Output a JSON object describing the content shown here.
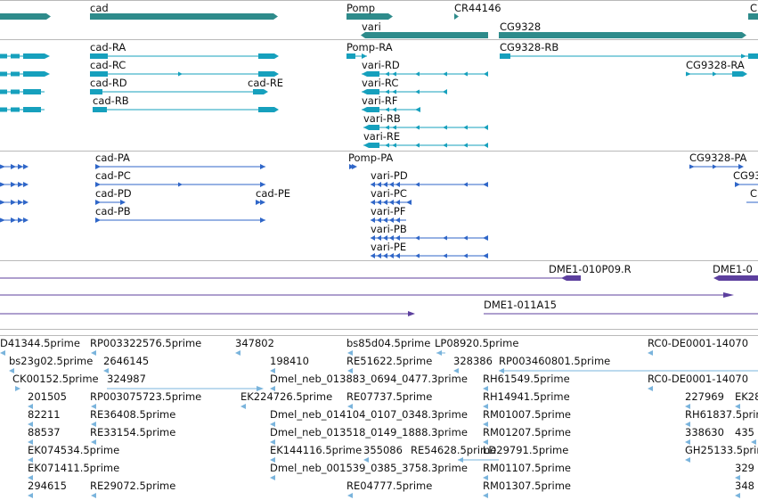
{
  "tracks": {
    "gene_spans": {
      "colors": {
        "feature": "#2e8b8b"
      },
      "labels": [
        {
          "text": "cad"
        },
        {
          "text": "Pomp"
        },
        {
          "text": "CR44146"
        },
        {
          "text": "vari"
        },
        {
          "text": "CG9328"
        },
        {
          "text": "C"
        }
      ]
    },
    "transcripts": {
      "colors": {
        "feature": "#16a0bd"
      },
      "labels": [
        {
          "text": "cad-RA"
        },
        {
          "text": "cad-RC"
        },
        {
          "text": "cad-RD"
        },
        {
          "text": "cad-RE"
        },
        {
          "text": "cad-RB"
        },
        {
          "text": "Pomp-RA"
        },
        {
          "text": "vari-RD"
        },
        {
          "text": "vari-RC"
        },
        {
          "text": "vari-RF"
        },
        {
          "text": "vari-RB"
        },
        {
          "text": "vari-RE"
        },
        {
          "text": "CG9328-RB"
        },
        {
          "text": "CG9328-RA"
        }
      ]
    },
    "proteins": {
      "colors": {
        "feature": "#2f66c8"
      },
      "labels": [
        {
          "text": "cad-PA"
        },
        {
          "text": "cad-PC"
        },
        {
          "text": "cad-PD"
        },
        {
          "text": "cad-PE"
        },
        {
          "text": "cad-PB"
        },
        {
          "text": "Pomp-PA"
        },
        {
          "text": "vari-PD"
        },
        {
          "text": "vari-PC"
        },
        {
          "text": "vari-PF"
        },
        {
          "text": "vari-PB"
        },
        {
          "text": "vari-PE"
        },
        {
          "text": "CG9328-PA"
        },
        {
          "text": "CG93"
        },
        {
          "text": "C"
        }
      ]
    },
    "clones": {
      "colors": {
        "feature": "#5c3f9e"
      },
      "labels": [
        {
          "text": "DME1-010P09.R"
        },
        {
          "text": "DME1-0"
        },
        {
          "text": "DME1-011A15"
        }
      ]
    },
    "ests": {
      "colors": {
        "feature": "#7ab4dc"
      },
      "labels": [
        {
          "text": "D41344.5prime"
        },
        {
          "text": "RP003322576.5prime"
        },
        {
          "text": "347802"
        },
        {
          "text": "bs85d04.5prime"
        },
        {
          "text": "LP08920.5prime"
        },
        {
          "text": "RC0-DE0001-14070"
        },
        {
          "text": "bs23g02.5prime"
        },
        {
          "text": "2646145"
        },
        {
          "text": "198410"
        },
        {
          "text": "RE51622.5prime"
        },
        {
          "text": "328386"
        },
        {
          "text": "RP003460801.5prime"
        },
        {
          "text": "CK00152.5prime"
        },
        {
          "text": "324987"
        },
        {
          "text": "Dmel_neb_013883_0694_0477.3prime"
        },
        {
          "text": "RH61549.5prime"
        },
        {
          "text": "RC0-DE0001-14070"
        },
        {
          "text": "201505"
        },
        {
          "text": "RP003075723.5prime"
        },
        {
          "text": "EK224726.5prime"
        },
        {
          "text": "RE07737.5prime"
        },
        {
          "text": "RH14941.5prime"
        },
        {
          "text": "227969"
        },
        {
          "text": "EK28"
        },
        {
          "text": "82211"
        },
        {
          "text": "RE36408.5prime"
        },
        {
          "text": "Dmel_neb_014104_0107_0348.3prime"
        },
        {
          "text": "RM01007.5prime"
        },
        {
          "text": "RH61837.5prime"
        },
        {
          "text": "88537"
        },
        {
          "text": "RE33154.5prime"
        },
        {
          "text": "Dmel_neb_013518_0149_1888.3prime"
        },
        {
          "text": "RM01207.5prime"
        },
        {
          "text": "338630"
        },
        {
          "text": "435"
        },
        {
          "text": "EK074534.5prime"
        },
        {
          "text": "EK144116.5prime"
        },
        {
          "text": "355086"
        },
        {
          "text": "RE54628.5prime"
        },
        {
          "text": "LD29791.5prime"
        },
        {
          "text": "GH25133.5prime"
        },
        {
          "text": "EK071411.5prime"
        },
        {
          "text": "Dmel_neb_001539_0385_3758.3prime"
        },
        {
          "text": "RM01107.5prime"
        },
        {
          "text": "329"
        },
        {
          "text": "294615"
        },
        {
          "text": "RE29072.5prime"
        },
        {
          "text": "RE04777.5prime"
        },
        {
          "text": "RM01307.5prime"
        },
        {
          "text": "348"
        }
      ]
    }
  }
}
